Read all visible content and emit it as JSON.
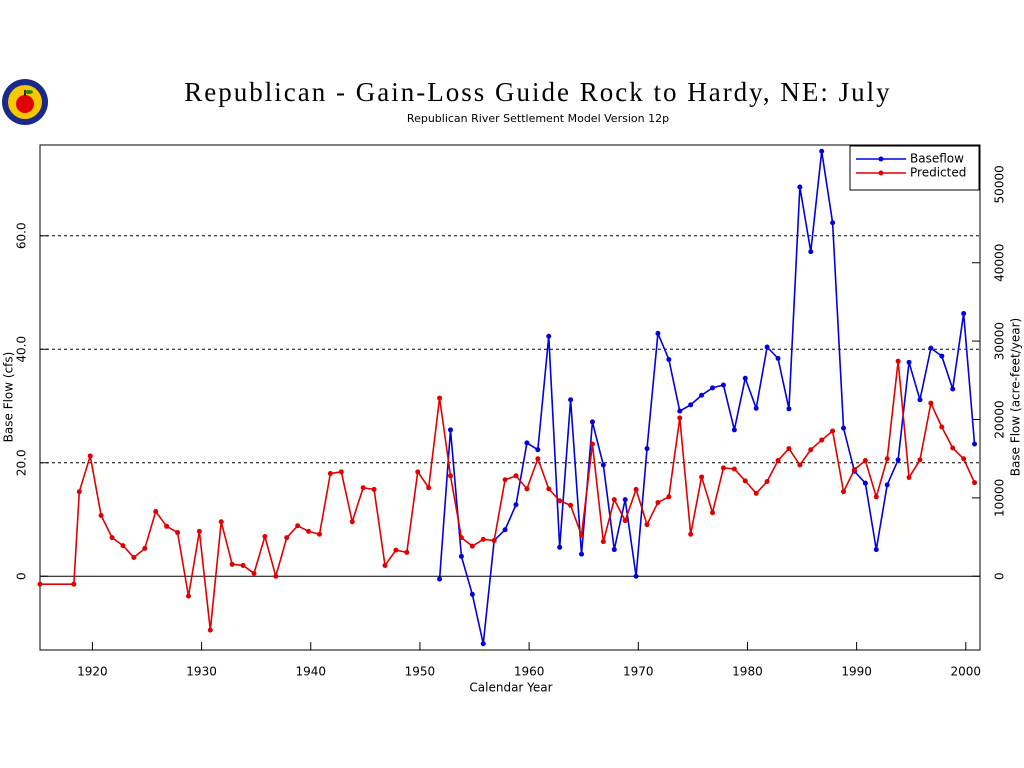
{
  "chart_data": {
    "type": "line",
    "title": "Republican - Gain-Loss Guide Rock to Hardy, NE: July",
    "subtitle": "Republican River Settlement Model Version 12p",
    "x_label": "Calendar Year",
    "y_label": "Base Flow (cfs)",
    "y2_label": "Base Flow (acre-feet/year)",
    "xlim": [
      1915.2,
      2001.3
    ],
    "xticks": [
      1920,
      1930,
      1940,
      1950,
      1960,
      1970,
      1980,
      1990,
      2000
    ],
    "ylim": [
      -13,
      76
    ],
    "yticks": [
      0,
      {
        "value": 20,
        "label": "20.0"
      },
      {
        "value": 40,
        "label": "40.0"
      },
      {
        "value": 60,
        "label": "60.0"
      }
    ],
    "y2lim": [
      -9412,
      55022
    ],
    "y2ticks": [
      0,
      10000,
      20000,
      30000,
      40000,
      50000
    ],
    "grid": true,
    "legend": "upper right",
    "series": [
      {
        "name": "Baseflow",
        "color": "#0000e0",
        "x": [
          1951.8,
          1952.8,
          1953.8,
          1954.8,
          1955.8,
          1956.8,
          1957.8,
          1958.8,
          1959.8,
          1960.8,
          1961.8,
          1962.8,
          1963.8,
          1964.8,
          1965.8,
          1966.8,
          1967.8,
          1968.8,
          1969.8,
          1970.8,
          1971.8,
          1972.8,
          1973.8,
          1974.8,
          1975.8,
          1976.8,
          1977.8,
          1978.8,
          1979.8,
          1980.8,
          1981.8,
          1982.8,
          1983.8,
          1984.8,
          1985.8,
          1986.8,
          1987.8,
          1988.8,
          1989.8,
          1990.8,
          1991.8,
          1992.8,
          1993.8,
          1994.8,
          1995.8,
          1996.8,
          1997.8,
          1998.8,
          1999.8,
          2000.8
        ],
        "values": [
          -0.5,
          25.8,
          3.5,
          -3.2,
          -11.9,
          6.3,
          8.2,
          12.6,
          23.5,
          22.3,
          42.3,
          5.1,
          31.1,
          3.9,
          27.2,
          19.6,
          4.7,
          13.5,
          0,
          22.5,
          42.8,
          38.2,
          29.1,
          30.2,
          31.9,
          33.2,
          33.7,
          25.8,
          34.9,
          29.6,
          40.4,
          38.4,
          29.5,
          68.6,
          57.2,
          74.9,
          62.3,
          26.1,
          18.5,
          16.4,
          4.7,
          16.1,
          20.5,
          37.7,
          31.1,
          40.2,
          38.8,
          33.0,
          46.3,
          23.3
        ]
      },
      {
        "name": "Predicted",
        "color": "#e00000",
        "x": [
          1915.2,
          1918.3,
          1918.8,
          1919.8,
          1920.8,
          1921.8,
          1922.8,
          1923.8,
          1924.8,
          1925.8,
          1926.8,
          1927.8,
          1928.8,
          1929.8,
          1930.8,
          1931.8,
          1932.8,
          1933.8,
          1934.8,
          1935.8,
          1936.8,
          1937.8,
          1938.8,
          1939.8,
          1940.8,
          1941.8,
          1942.8,
          1943.8,
          1944.8,
          1945.8,
          1946.8,
          1947.8,
          1948.8,
          1949.8,
          1950.8,
          1951.8,
          1952.8,
          1953.8,
          1954.8,
          1955.8,
          1956.8,
          1957.8,
          1958.8,
          1959.8,
          1960.8,
          1961.8,
          1962.8,
          1963.8,
          1964.8,
          1965.8,
          1966.8,
          1967.8,
          1968.8,
          1969.8,
          1970.8,
          1971.8,
          1972.8,
          1973.8,
          1974.8,
          1975.8,
          1976.8,
          1977.8,
          1978.8,
          1979.8,
          1980.8,
          1981.8,
          1982.8,
          1983.8,
          1984.8,
          1985.8,
          1986.8,
          1987.8,
          1988.8,
          1989.8,
          1990.8,
          1991.8,
          1992.8,
          1993.8,
          1994.8,
          1995.8,
          1996.8,
          1997.8,
          1998.8,
          1999.8,
          2000.8
        ],
        "values": [
          -1.4,
          -1.4,
          14.9,
          21.2,
          10.7,
          6.8,
          5.4,
          3.3,
          4.9,
          11.4,
          8.8,
          7.7,
          -3.5,
          7.9,
          -9.5,
          9.6,
          2.1,
          1.9,
          0.5,
          7.0,
          0,
          6.8,
          8.9,
          7.9,
          7.4,
          18.1,
          18.4,
          9.6,
          15.6,
          15.3,
          1.9,
          4.6,
          4.2,
          18.4,
          15.6,
          31.4,
          17.7,
          6.8,
          5.3,
          6.5,
          6.3,
          17.0,
          17.7,
          15.4,
          20.7,
          15.4,
          13.3,
          12.5,
          7.2,
          23.3,
          6.1,
          13.5,
          9.8,
          15.3,
          9.1,
          13.0,
          14.0,
          27.9,
          7.4,
          17.5,
          11.2,
          19.1,
          18.9,
          16.8,
          14.6,
          16.7,
          20.4,
          22.5,
          19.6,
          22.3,
          24.0,
          25.6,
          14.9,
          18.8,
          20.4,
          14.0,
          20.7,
          37.9,
          17.4,
          20.5,
          30.5,
          26.3,
          22.6,
          20.7,
          16.5
        ]
      }
    ]
  }
}
